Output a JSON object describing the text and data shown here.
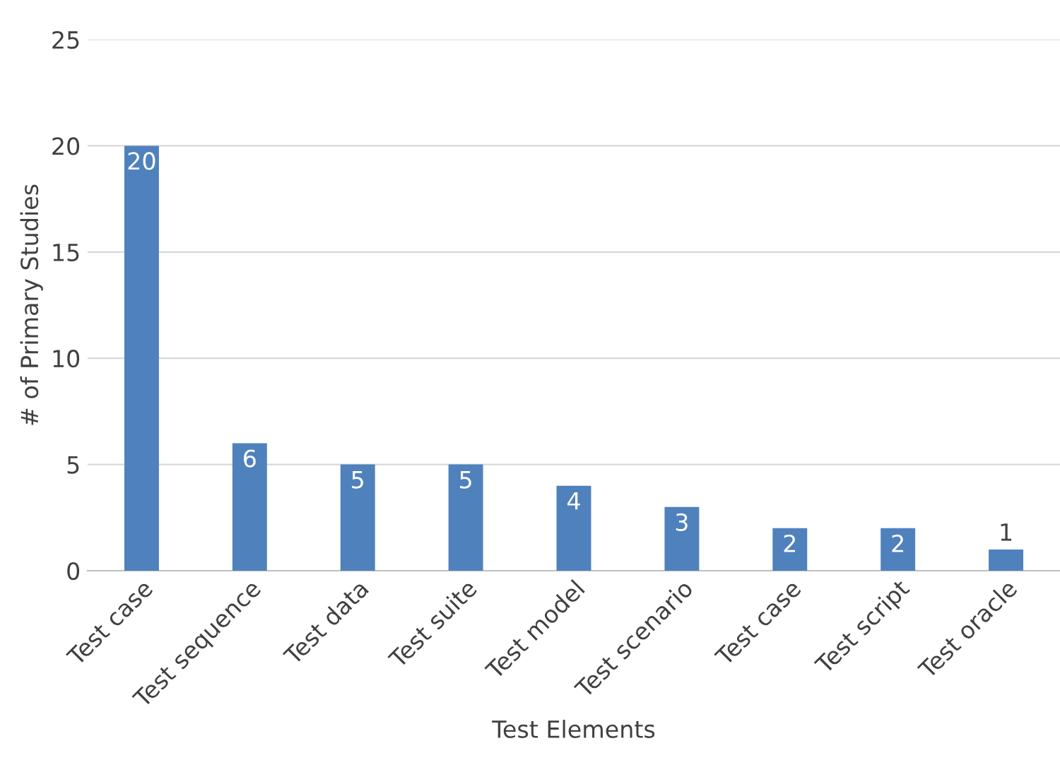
{
  "chart_data": {
    "type": "bar",
    "xlabel": "Test Elements",
    "ylabel": "# of Primary Studies",
    "categories": [
      "Test case",
      "Test sequence",
      "Test data",
      "Test suite",
      "Test model",
      "Test scenario",
      "Test case",
      "Test script",
      "Test oracle"
    ],
    "values": [
      20,
      6,
      5,
      5,
      4,
      3,
      2,
      2,
      1
    ],
    "color": "#4f81bd",
    "ylim": [
      0,
      25
    ],
    "yticks": [
      0,
      5,
      10,
      15,
      20,
      25
    ],
    "grid": "y",
    "data_labels": true
  }
}
